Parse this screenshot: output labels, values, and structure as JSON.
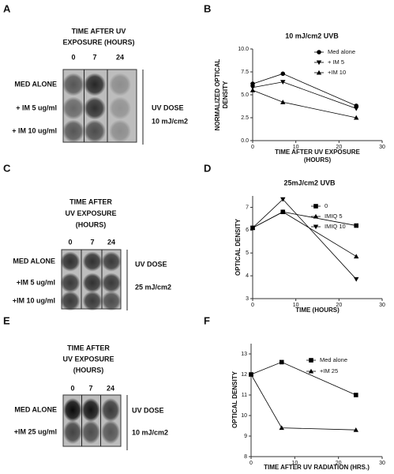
{
  "panels": [
    {
      "letter": "A",
      "header": [
        "TIME AFTER UV",
        "EXPOSURE (HOURS)"
      ],
      "columns": [
        "0",
        "7",
        "24"
      ],
      "rows": [
        "MED ALONE",
        "+ IM 5 ug/ml",
        "+ IM 10 ug/ml"
      ],
      "dose": [
        "UV DOSE",
        "10 mJ/cm2"
      ]
    },
    {
      "letter": "C",
      "header": [
        "TIME AFTER",
        "UV EXPOSURE",
        "(HOURS)"
      ],
      "columns": [
        "0",
        "7",
        "24"
      ],
      "rows": [
        "MED ALONE",
        "+IM 5 ug/ml",
        "+IM 10 ug/ml"
      ],
      "dose": [
        "UV DOSE",
        "25 mJ/cm2"
      ]
    },
    {
      "letter": "E",
      "header": [
        "TIME AFTER",
        "UV EXPOSURE",
        "(HOURS)"
      ],
      "columns": [
        "0",
        "7",
        "24"
      ],
      "rows": [
        "MED ALONE",
        "+IM 25 ug/ml"
      ],
      "dose": [
        "UV DOSE",
        "10 mJ/cm2"
      ]
    }
  ],
  "chart_data": [
    {
      "type": "line",
      "panel": "B",
      "title": "10 mJ/cm2 UVB",
      "ylabel": [
        "NORMALIZED OPTICAL",
        "DENSITY"
      ],
      "xlabel": [
        "TIME AFTER UV EXPOSURE",
        "(HOURS)"
      ],
      "x": [
        0,
        7,
        24
      ],
      "xlim": [
        0,
        30
      ],
      "xticks": [
        0,
        10,
        20,
        30
      ],
      "ylim": [
        0,
        10
      ],
      "yticks": [
        {
          "value": 0,
          "label": "0.0"
        },
        2.5,
        {
          "value": 5,
          "label": "5.0"
        },
        7.5,
        {
          "value": 10,
          "label": "10.0"
        }
      ],
      "series": [
        {
          "name": "Med alone",
          "color": "#000000",
          "marker": "circle",
          "values": [
            6.2,
            7.3,
            3.8
          ]
        },
        {
          "name": "+ IM 5",
          "color": "#000000",
          "marker": "triangle-down",
          "values": [
            5.8,
            6.4,
            3.5
          ]
        },
        {
          "name": "+IM 10",
          "color": "#000000",
          "marker": "triangle-up",
          "values": [
            5.5,
            4.2,
            2.5
          ]
        }
      ]
    },
    {
      "type": "line",
      "panel": "D",
      "title": "25mJ/cm2 UVB",
      "ylabel": [
        "OPTICAL DENSITY"
      ],
      "xlabel": [
        "TIME (HOURS)"
      ],
      "x": [
        0,
        7,
        24
      ],
      "xlim": [
        0,
        30
      ],
      "xticks": [
        0,
        10,
        20,
        30
      ],
      "ylim": [
        3,
        7.5
      ],
      "yticks": [
        3,
        4,
        5,
        6,
        7
      ],
      "series": [
        {
          "name": "0",
          "color": "#000000",
          "marker": "square",
          "values": [
            6.1,
            6.8,
            6.2
          ]
        },
        {
          "name": "IMIQ 5",
          "color": "#000000",
          "marker": "triangle-up",
          "values": [
            6.1,
            6.8,
            4.85
          ]
        },
        {
          "name": "IMIQ 10",
          "color": "#000000",
          "marker": "triangle-down",
          "values": [
            6.1,
            7.35,
            3.85
          ]
        }
      ]
    },
    {
      "type": "line",
      "panel": "F",
      "ylabel": [
        "OPTICAL DENSITY"
      ],
      "xlabel": [
        "TIME AFTER UV RADIATION (HRS.)"
      ],
      "x": [
        0,
        7,
        24
      ],
      "xlim": [
        0,
        30
      ],
      "xticks": [
        0,
        10,
        20,
        30
      ],
      "ylim": [
        8,
        13.5
      ],
      "yticks": [
        8,
        9,
        10,
        11,
        12,
        13
      ],
      "series": [
        {
          "name": "Med alone",
          "color": "#000000",
          "marker": "square",
          "values": [
            12,
            12.6,
            11
          ]
        },
        {
          "name": "+IM 25",
          "color": "#000000",
          "marker": "triangle-up",
          "values": [
            12,
            9.4,
            9.3
          ]
        }
      ]
    }
  ]
}
